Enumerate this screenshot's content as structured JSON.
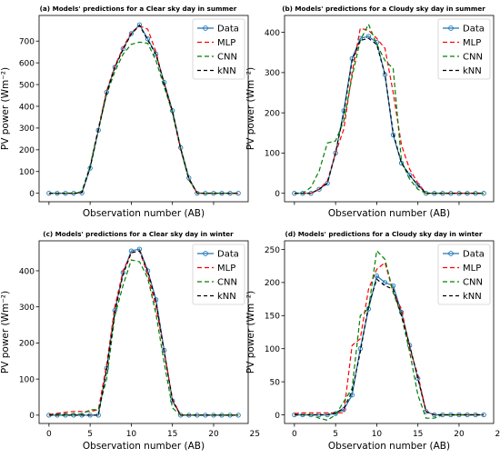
{
  "chart_data": [
    {
      "type": "line",
      "title": "(a) Models' predictions for a Clear sky day in summer",
      "xlabel": "Observation number (AB)",
      "ylabel": "PV power (Wm⁻²)",
      "xlim": [
        -1.2,
        24.2
      ],
      "ylim": [
        -39,
        818
      ],
      "xticks": [],
      "yticks": [
        0,
        100,
        200,
        300,
        400,
        500,
        600,
        700
      ],
      "legend_position": "top-right",
      "x": [
        0,
        1,
        2,
        3,
        4,
        5,
        6,
        7,
        8,
        9,
        10,
        11,
        12,
        13,
        14,
        15,
        16,
        17,
        18,
        19,
        20,
        21,
        22,
        23
      ],
      "series": [
        {
          "name": "Data",
          "color": "#1f77b4",
          "values": [
            0,
            0,
            0,
            0,
            2,
            115,
            290,
            465,
            580,
            665,
            735,
            775,
            710,
            640,
            510,
            380,
            210,
            70,
            0,
            0,
            0,
            0,
            0,
            0
          ]
        },
        {
          "name": "MLP",
          "color": "#ff0000",
          "values": [
            0,
            0,
            0,
            0,
            5,
            125,
            300,
            470,
            585,
            670,
            740,
            770,
            755,
            650,
            500,
            370,
            200,
            65,
            0,
            0,
            0,
            0,
            0,
            0
          ]
        },
        {
          "name": "CNN",
          "color": "#008000",
          "values": [
            0,
            0,
            0,
            0,
            8,
            125,
            295,
            455,
            560,
            640,
            685,
            695,
            690,
            610,
            490,
            370,
            205,
            60,
            2,
            0,
            0,
            0,
            0,
            0
          ]
        },
        {
          "name": "kNN",
          "color": "#000000",
          "values": [
            0,
            0,
            0,
            0,
            3,
            118,
            290,
            462,
            578,
            662,
            732,
            772,
            705,
            638,
            505,
            378,
            205,
            68,
            0,
            0,
            0,
            0,
            0,
            0
          ]
        }
      ]
    },
    {
      "type": "line",
      "title": "(b) Models' predictions for a Cloudy sky day in summer",
      "xlabel": "Observation number (AB)",
      "ylabel": "PV power (Wm⁻²)",
      "xlim": [
        -1.2,
        24.2
      ],
      "ylim": [
        -21,
        442
      ],
      "xticks": [],
      "yticks": [
        0,
        100,
        200,
        300,
        400
      ],
      "legend_position": "top-right",
      "x": [
        0,
        1,
        2,
        3,
        4,
        5,
        6,
        7,
        8,
        9,
        10,
        11,
        12,
        13,
        14,
        15,
        16,
        17,
        18,
        19,
        20,
        21,
        22,
        23
      ],
      "series": [
        {
          "name": "Data",
          "color": "#1f77b4",
          "values": [
            0,
            0,
            0,
            10,
            25,
            100,
            205,
            335,
            385,
            390,
            375,
            295,
            145,
            75,
            45,
            20,
            0,
            0,
            0,
            0,
            0,
            0,
            0,
            0
          ]
        },
        {
          "name": "MLP",
          "color": "#ff0000",
          "values": [
            0,
            0,
            0,
            10,
            30,
            100,
            160,
            300,
            410,
            405,
            385,
            360,
            250,
            120,
            60,
            25,
            0,
            0,
            0,
            0,
            0,
            0,
            0,
            0
          ]
        },
        {
          "name": "CNN",
          "color": "#008000",
          "values": [
            0,
            0,
            15,
            55,
            125,
            130,
            180,
            290,
            380,
            420,
            370,
            330,
            310,
            80,
            35,
            10,
            0,
            0,
            0,
            0,
            0,
            0,
            0,
            0
          ]
        },
        {
          "name": "kNN",
          "color": "#000000",
          "values": [
            0,
            0,
            0,
            10,
            25,
            100,
            200,
            330,
            380,
            385,
            370,
            295,
            150,
            75,
            45,
            20,
            0,
            0,
            0,
            0,
            0,
            0,
            0,
            0
          ]
        }
      ]
    },
    {
      "type": "line",
      "title": "(c) Models' predictions for a Clear sky day in winter",
      "xlabel": "Observation number (AB)",
      "ylabel": "PV power (Wm⁻²)",
      "xlim": [
        -1.2,
        24.2
      ],
      "ylim": [
        -23,
        483
      ],
      "xticks": [
        0,
        5,
        10,
        15,
        20,
        25
      ],
      "yticks": [
        0,
        100,
        200,
        300,
        400
      ],
      "legend_position": "top-right",
      "x": [
        0,
        1,
        2,
        3,
        4,
        5,
        6,
        7,
        8,
        9,
        10,
        11,
        12,
        13,
        14,
        15,
        16,
        17,
        18,
        19,
        20,
        21,
        22,
        23
      ],
      "series": [
        {
          "name": "Data",
          "color": "#1f77b4",
          "values": [
            0,
            0,
            0,
            0,
            0,
            0,
            0,
            130,
            290,
            395,
            455,
            460,
            400,
            320,
            180,
            40,
            0,
            0,
            0,
            0,
            0,
            0,
            0,
            0
          ]
        },
        {
          "name": "MLP",
          "color": "#ff0000",
          "values": [
            2,
            5,
            8,
            10,
            10,
            10,
            15,
            140,
            300,
            400,
            450,
            455,
            390,
            300,
            175,
            45,
            0,
            0,
            0,
            0,
            0,
            0,
            0,
            0
          ]
        },
        {
          "name": "CNN",
          "color": "#008000",
          "values": [
            0,
            3,
            3,
            3,
            3,
            15,
            15,
            100,
            275,
            360,
            430,
            425,
            380,
            280,
            145,
            20,
            0,
            0,
            0,
            0,
            0,
            0,
            0,
            0
          ]
        },
        {
          "name": "kNN",
          "color": "#000000",
          "values": [
            0,
            0,
            0,
            0,
            0,
            0,
            0,
            125,
            285,
            390,
            450,
            455,
            400,
            315,
            175,
            40,
            0,
            0,
            0,
            0,
            0,
            0,
            0,
            0
          ]
        }
      ]
    },
    {
      "type": "line",
      "title": "(d) Models' predictions for a Cloudy sky day in winter",
      "xlabel": "Observation number (AB)",
      "ylabel": "PV power (Wm⁻²)",
      "xlim": [
        -1.2,
        24.2
      ],
      "ylim": [
        -13,
        263
      ],
      "xticks": [
        0,
        5,
        10,
        15,
        20,
        25
      ],
      "yticks": [
        0,
        50,
        100,
        150,
        200,
        250
      ],
      "legend_position": "top-right",
      "x": [
        0,
        1,
        2,
        3,
        4,
        5,
        6,
        7,
        8,
        9,
        10,
        11,
        12,
        13,
        14,
        15,
        16,
        17,
        18,
        19,
        20,
        21,
        22,
        23
      ],
      "series": [
        {
          "name": "Data",
          "color": "#1f77b4",
          "values": [
            0,
            0,
            0,
            0,
            0,
            2,
            8,
            30,
            100,
            160,
            210,
            200,
            195,
            155,
            105,
            55,
            5,
            0,
            0,
            0,
            0,
            0,
            0,
            0
          ]
        },
        {
          "name": "MLP",
          "color": "#ff0000",
          "values": [
            2,
            3,
            3,
            3,
            3,
            3,
            3,
            105,
            115,
            190,
            220,
            230,
            185,
            160,
            100,
            60,
            5,
            0,
            0,
            0,
            0,
            0,
            0,
            0
          ]
        },
        {
          "name": "CNN",
          "color": "#008000",
          "values": [
            0,
            0,
            0,
            -5,
            -8,
            0,
            20,
            40,
            150,
            160,
            248,
            235,
            185,
            150,
            95,
            30,
            -5,
            -5,
            0,
            0,
            0,
            0,
            0,
            0
          ]
        },
        {
          "name": "kNN",
          "color": "#000000",
          "values": [
            0,
            0,
            0,
            0,
            0,
            3,
            10,
            35,
            95,
            165,
            205,
            195,
            190,
            150,
            105,
            55,
            5,
            0,
            0,
            0,
            0,
            0,
            0,
            0
          ]
        }
      ]
    }
  ]
}
